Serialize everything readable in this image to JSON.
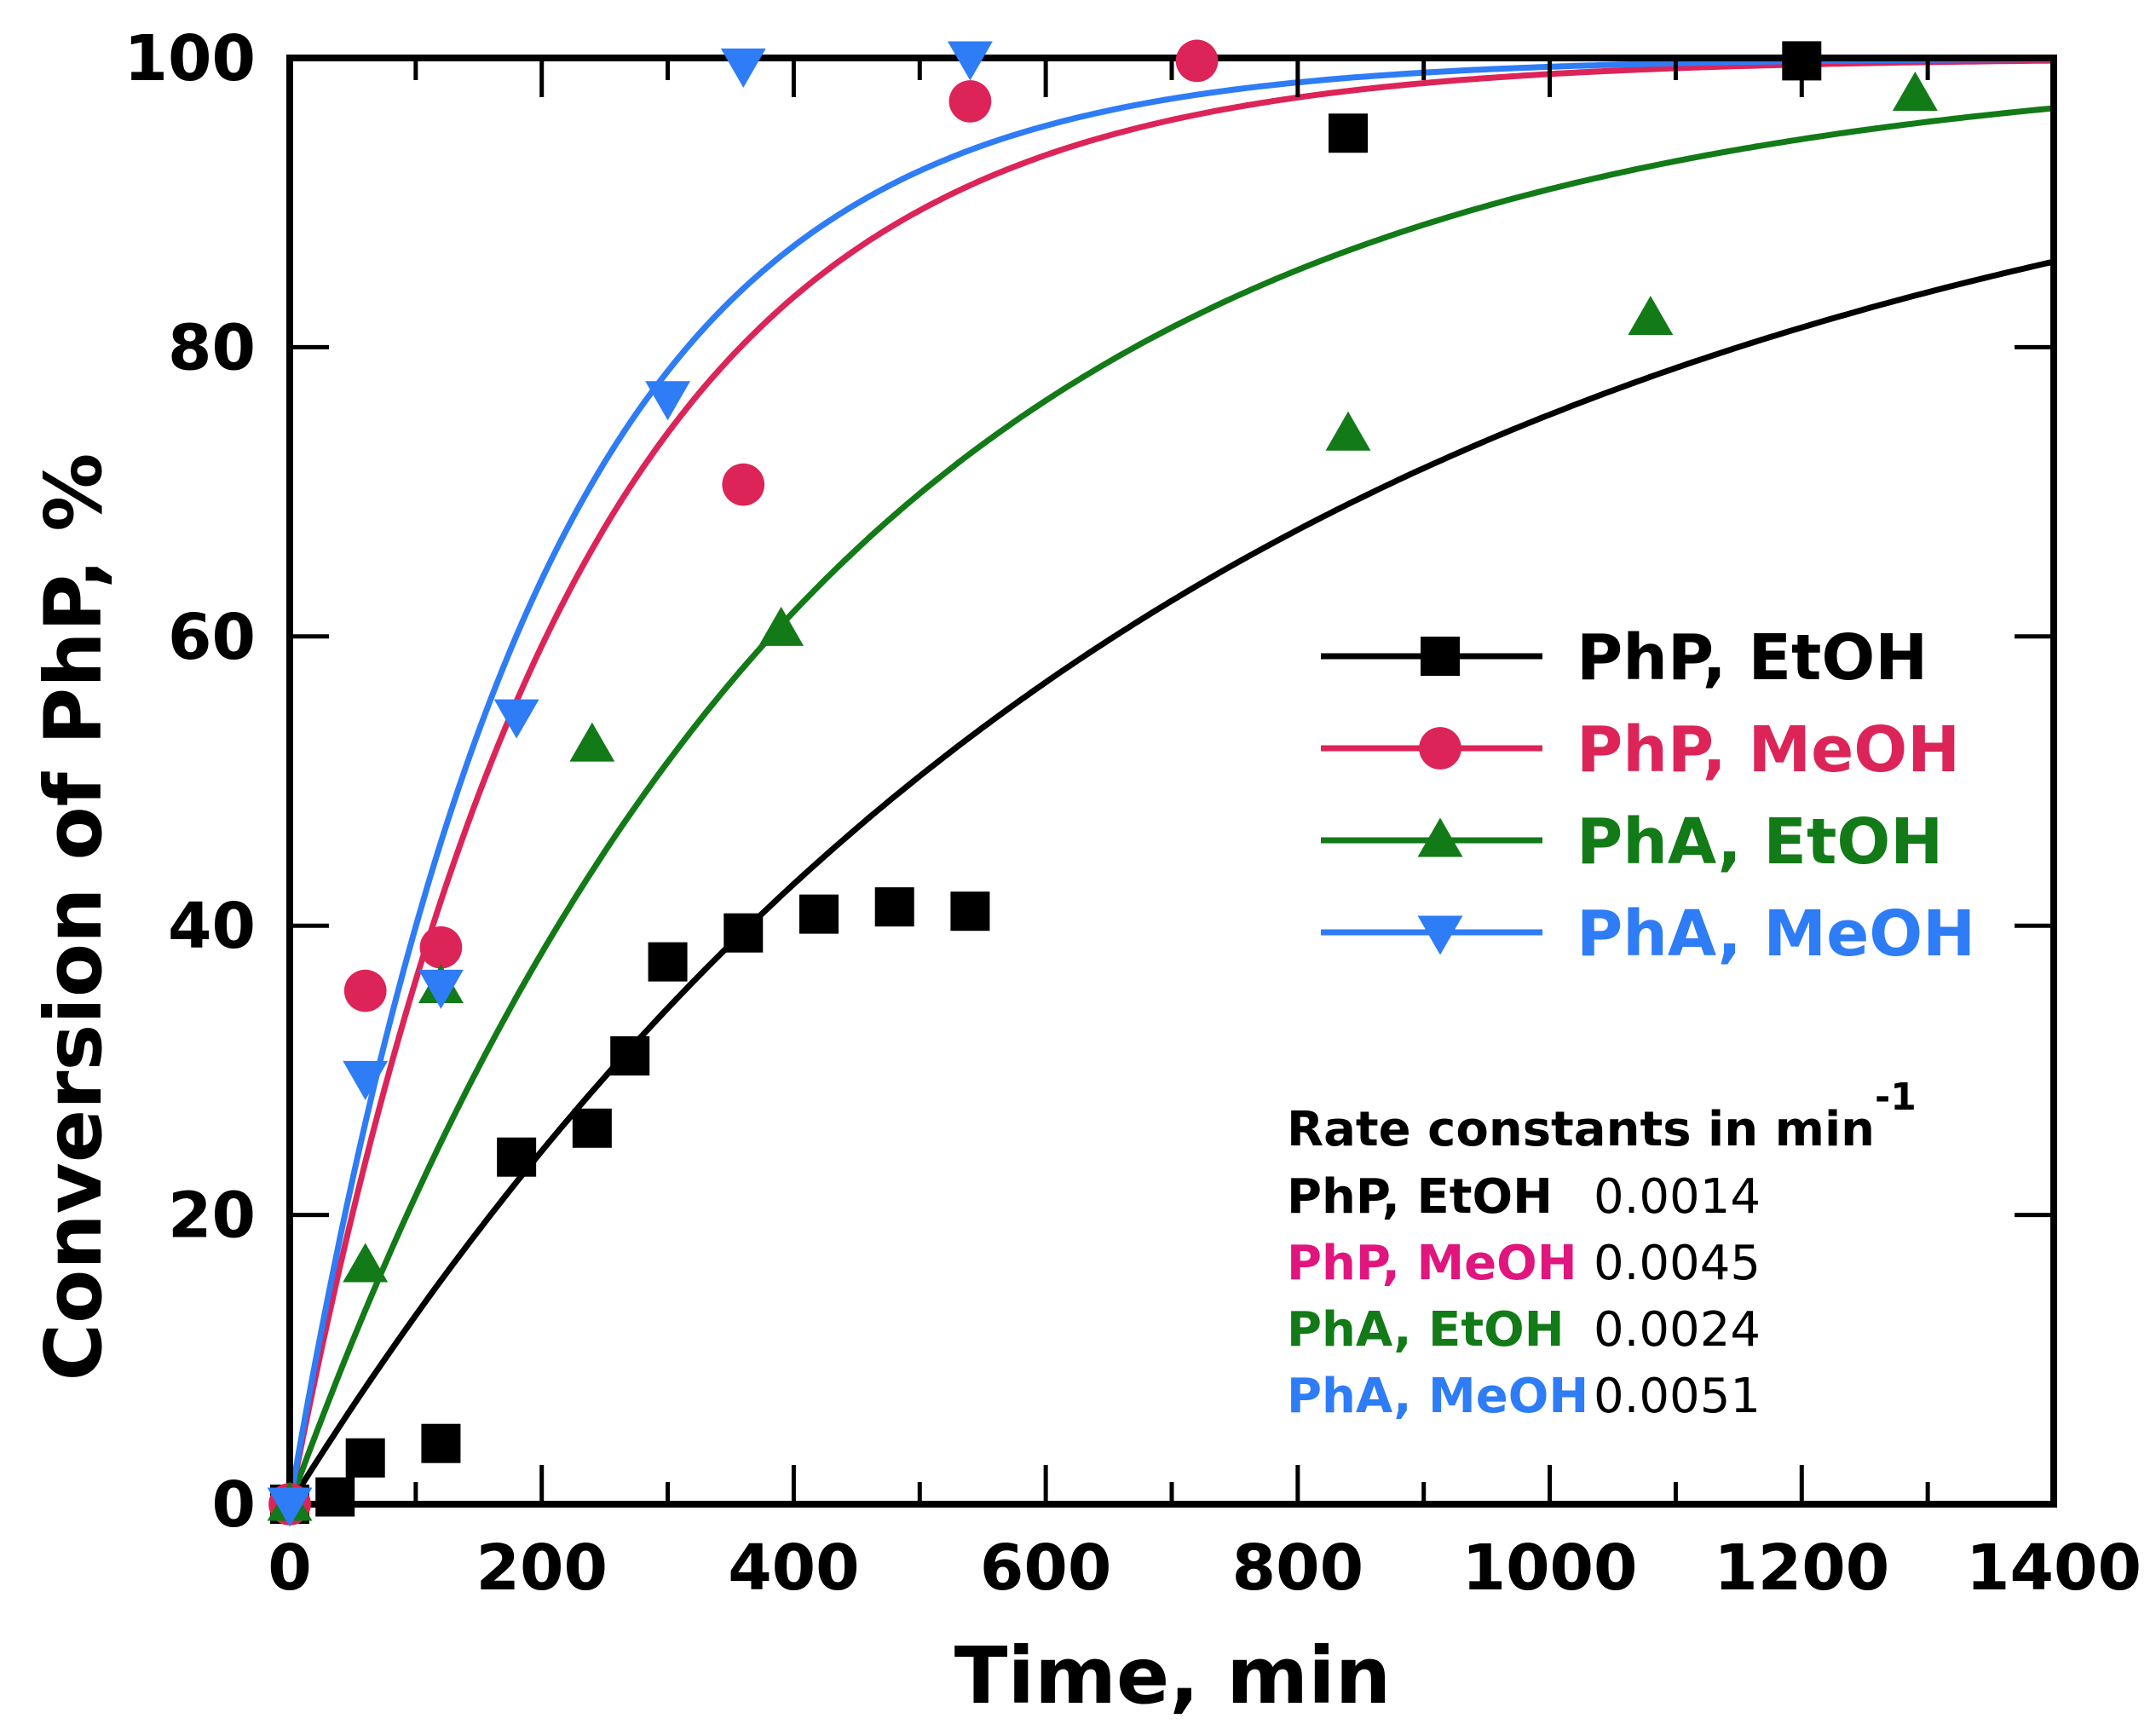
{
  "chart_data": {
    "type": "scatter",
    "title": "",
    "xlabel": "Time, min",
    "ylabel": "Conversion of PhP, %",
    "xlim": [
      0,
      1400
    ],
    "ylim": [
      0,
      100
    ],
    "xticks": [
      0,
      200,
      400,
      600,
      800,
      1000,
      1200,
      1400
    ],
    "yticks": [
      0,
      20,
      40,
      60,
      80,
      100
    ],
    "grid": false,
    "legend_position": "center-right",
    "series": [
      {
        "name": "PhP, EtOH",
        "color": "#000000",
        "marker": "square",
        "k": 0.0014,
        "x": [
          0,
          36,
          60,
          120,
          180,
          240,
          270,
          300,
          360,
          420,
          480,
          540,
          840,
          1200
        ],
        "y": [
          0,
          0.5,
          3.2,
          4.2,
          24,
          26,
          31,
          37.5,
          39.5,
          40.8,
          41.3,
          41,
          94.8,
          99.8
        ]
      },
      {
        "name": "PhP, MeOH",
        "color": "#dc2458",
        "marker": "circle",
        "k": 0.0045,
        "x": [
          0,
          60,
          120,
          360,
          540,
          720
        ],
        "y": [
          0,
          35.5,
          38.5,
          70.5,
          97,
          99.8
        ]
      },
      {
        "name": "PhA, EtOH",
        "color": "#127a17",
        "marker": "triangle-up",
        "k": 0.0024,
        "x": [
          0,
          60,
          120,
          240,
          390,
          840,
          1080,
          1290
        ],
        "y": [
          0,
          16.5,
          35.8,
          52.5,
          60.5,
          74,
          82,
          97.5
        ]
      },
      {
        "name": "PhA, MeOH",
        "color": "#2e7cf6",
        "marker": "triangle-down",
        "k": 0.0051,
        "x": [
          0,
          60,
          120,
          180,
          300,
          360,
          540
        ],
        "y": [
          0,
          29.5,
          35.8,
          54.5,
          76.5,
          99.5,
          100
        ]
      }
    ],
    "rate_constants": {
      "title": "Rate constants in min",
      "superscript": "-1",
      "rows": [
        {
          "label": "PhP, EtOH",
          "value": "0.0014",
          "color": "#000000"
        },
        {
          "label": "PhP, MeOH",
          "value": "0.0045",
          "color": "#e0157d"
        },
        {
          "label": "PhA, EtOH",
          "value": "0.0024",
          "color": "#127a17"
        },
        {
          "label": "PhA, MeOH",
          "value": "0.0051",
          "color": "#2e7cf6"
        }
      ]
    }
  }
}
